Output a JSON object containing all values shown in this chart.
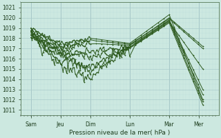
{
  "xlabel": "Pression niveau de la mer( hPa )",
  "ylim": [
    1010.5,
    1021.5
  ],
  "yticks": [
    1011,
    1012,
    1013,
    1014,
    1015,
    1016,
    1017,
    1018,
    1019,
    1020,
    1021
  ],
  "xtick_labels": [
    "Sam",
    "Jeu",
    "Dim",
    "Lun",
    "Mar",
    "Mer"
  ],
  "xtick_positions": [
    0.5,
    2.0,
    3.5,
    5.5,
    7.5,
    9.0
  ],
  "xlim": [
    0.0,
    10.0
  ],
  "bg_color": "#cce8e0",
  "grid_major_color": "#aacccc",
  "grid_minor_color": "#bbdddd",
  "line_color": "#2d5a1e",
  "vline_color": "#88aaaa",
  "lines": [
    {
      "nodes_x": [
        0.5,
        2.0,
        3.5,
        5.5,
        7.5,
        9.2
      ],
      "nodes_y": [
        1018.5,
        1017.0,
        1017.5,
        1017.3,
        1020.0,
        1017.2
      ],
      "noisy_until": 2,
      "noise_amp": 0.12
    },
    {
      "nodes_x": [
        0.5,
        2.0,
        3.5,
        5.5,
        7.5,
        9.2
      ],
      "nodes_y": [
        1018.3,
        1016.3,
        1016.7,
        1017.1,
        1019.7,
        1012.5
      ],
      "noisy_until": 3,
      "noise_amp": 0.18
    },
    {
      "nodes_x": [
        0.5,
        2.0,
        3.5,
        5.5,
        7.5,
        9.2
      ],
      "nodes_y": [
        1018.6,
        1015.8,
        1015.2,
        1017.0,
        1019.5,
        1011.5
      ],
      "noisy_until": 3,
      "noise_amp": 0.22
    },
    {
      "nodes_x": [
        0.5,
        2.0,
        3.5,
        5.5,
        7.5,
        9.2
      ],
      "nodes_y": [
        1018.7,
        1016.5,
        1014.8,
        1017.2,
        1019.8,
        1013.0
      ],
      "noisy_until": 3,
      "noise_amp": 0.25
    },
    {
      "nodes_x": [
        0.5,
        2.0,
        3.5,
        5.5,
        7.5,
        9.2
      ],
      "nodes_y": [
        1018.9,
        1017.2,
        1017.8,
        1017.4,
        1019.9,
        1017.0
      ],
      "noisy_until": 2,
      "noise_amp": 0.1
    },
    {
      "nodes_x": [
        0.5,
        2.0,
        3.5,
        5.5,
        7.5,
        9.2
      ],
      "nodes_y": [
        1019.0,
        1017.5,
        1018.0,
        1017.5,
        1020.3,
        1012.0
      ],
      "noisy_until": 2,
      "noise_amp": 0.1
    },
    {
      "nodes_x": [
        0.5,
        2.0,
        3.5,
        5.5,
        7.5,
        9.2
      ],
      "nodes_y": [
        1018.4,
        1015.2,
        1014.3,
        1017.0,
        1019.6,
        1015.0
      ],
      "noisy_until": 3,
      "noise_amp": 0.28
    },
    {
      "nodes_x": [
        0.5,
        2.0,
        3.5,
        5.5,
        7.5,
        9.2
      ],
      "nodes_y": [
        1018.2,
        1016.8,
        1016.2,
        1017.1,
        1019.7,
        1011.8
      ],
      "noisy_until": 3,
      "noise_amp": 0.2
    }
  ],
  "vlines_x": [
    0.5,
    2.0,
    3.5,
    5.5,
    7.5,
    9.0
  ]
}
